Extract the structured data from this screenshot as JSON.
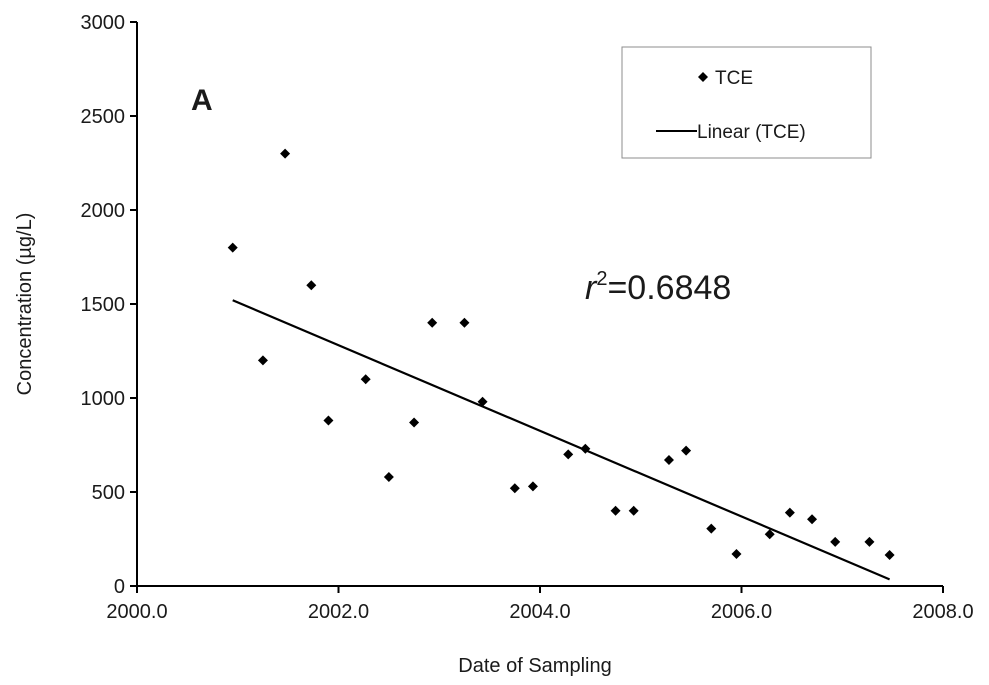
{
  "chart_data": {
    "type": "scatter",
    "panel_label": "A",
    "xlabel": "Date of Sampling",
    "ylabel": "Concentration (µg/L)",
    "xlim": [
      2000.0,
      2008.0
    ],
    "ylim": [
      0,
      3000
    ],
    "xticks": [
      2000.0,
      2002.0,
      2004.0,
      2006.0,
      2008.0
    ],
    "xtick_labels": [
      "2000.0",
      "2002.0",
      "2004.0",
      "2006.0",
      "2008.0"
    ],
    "yticks": [
      0,
      500,
      1000,
      1500,
      2000,
      2500,
      3000
    ],
    "ytick_labels": [
      "0",
      "500",
      "1000",
      "1500",
      "2000",
      "2500",
      "3000"
    ],
    "grid": false,
    "legend_position": "top-right",
    "series": [
      {
        "name": "TCE",
        "marker": "diamond",
        "color": "#000000",
        "x": [
          2000.95,
          2001.25,
          2001.47,
          2001.73,
          2001.9,
          2002.27,
          2002.5,
          2002.75,
          2002.93,
          2003.25,
          2003.43,
          2003.75,
          2003.93,
          2004.28,
          2004.45,
          2004.75,
          2004.93,
          2005.28,
          2005.45,
          2005.7,
          2005.95,
          2006.28,
          2006.48,
          2006.7,
          2006.93,
          2007.27,
          2007.47
        ],
        "y": [
          1800,
          1200,
          2300,
          1600,
          880,
          1100,
          580,
          870,
          1400,
          1400,
          980,
          520,
          530,
          700,
          730,
          400,
          400,
          670,
          720,
          305,
          170,
          275,
          390,
          355,
          235,
          235,
          165
        ]
      },
      {
        "name": "Linear (TCE)",
        "type": "line",
        "color": "#000000",
        "x": [
          2000.95,
          2007.47
        ],
        "y": [
          1520,
          35
        ]
      }
    ],
    "annotation": {
      "r_symbol": "r",
      "exponent": "2",
      "value": "=0.6848"
    }
  }
}
